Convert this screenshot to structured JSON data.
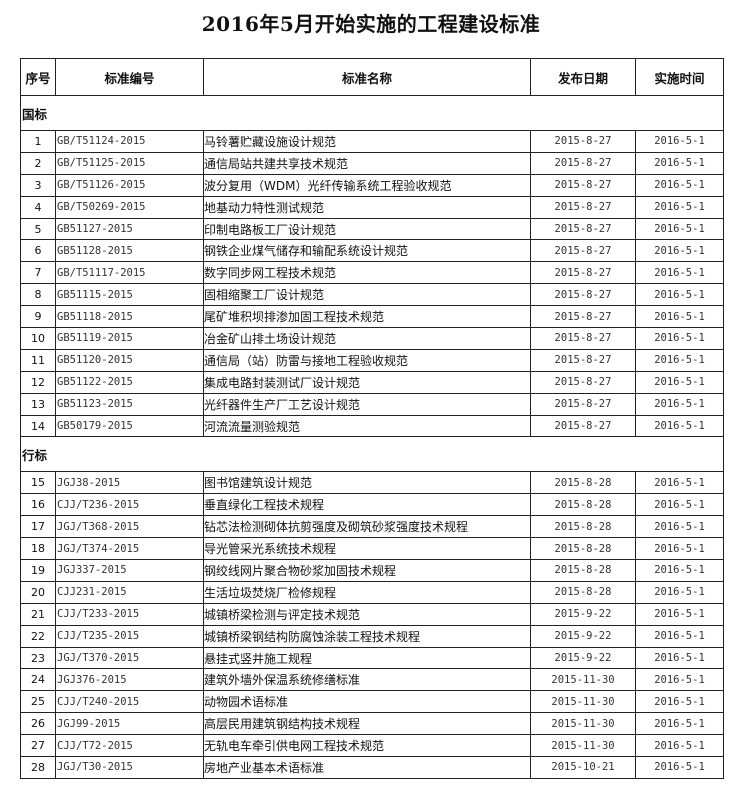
{
  "title": "2016年5月开始实施的工程建设标准",
  "headers": [
    "序号",
    "标准编号",
    "标准名称",
    "发布日期",
    "实施时间"
  ],
  "sections": [
    {
      "label": "国标",
      "rows": [
        [
          "1",
          "GB/T51124-2015",
          "马铃薯贮藏设施设计规范",
          "2015-8-27",
          "2016-5-1"
        ],
        [
          "2",
          "GB/T51125-2015",
          "通信局站共建共享技术规范",
          "2015-8-27",
          "2016-5-1"
        ],
        [
          "3",
          "GB/T51126-2015",
          "波分复用（WDM）光纤传输系统工程验收规范",
          "2015-8-27",
          "2016-5-1"
        ],
        [
          "4",
          "GB/T50269-2015",
          "地基动力特性测试规范",
          "2015-8-27",
          "2016-5-1"
        ],
        [
          "5",
          "GB51127-2015",
          "印制电路板工厂设计规范",
          "2015-8-27",
          "2016-5-1"
        ],
        [
          "6",
          "GB51128-2015",
          "钢铁企业煤气储存和输配系统设计规范",
          "2015-8-27",
          "2016-5-1"
        ],
        [
          "7",
          "GB/T51117-2015",
          "数字同步网工程技术规范",
          "2015-8-27",
          "2016-5-1"
        ],
        [
          "8",
          "GB51115-2015",
          "固相缩聚工厂设计规范",
          "2015-8-27",
          "2016-5-1"
        ],
        [
          "9",
          "GB51118-2015",
          "尾矿堆积坝排渗加固工程技术规范",
          "2015-8-27",
          "2016-5-1"
        ],
        [
          "10",
          "GB51119-2015",
          "冶金矿山排土场设计规范",
          "2015-8-27",
          "2016-5-1"
        ],
        [
          "11",
          "GB51120-2015",
          "通信局（站）防雷与接地工程验收规范",
          "2015-8-27",
          "2016-5-1"
        ],
        [
          "12",
          "GB51122-2015",
          "集成电路封装测试厂设计规范",
          "2015-8-27",
          "2016-5-1"
        ],
        [
          "13",
          "GB51123-2015",
          "光纤器件生产厂工艺设计规范",
          "2015-8-27",
          "2016-5-1"
        ],
        [
          "14",
          "GB50179-2015",
          "河流流量测验规范",
          "2015-8-27",
          "2016-5-1"
        ]
      ]
    },
    {
      "label": "行标",
      "rows": [
        [
          "15",
          "JGJ38-2015",
          "图书馆建筑设计规范",
          "2015-8-28",
          "2016-5-1"
        ],
        [
          "16",
          "CJJ/T236-2015",
          "垂直绿化工程技术规程",
          "2015-8-28",
          "2016-5-1"
        ],
        [
          "17",
          "JGJ/T368-2015",
          "钻芯法检测砌体抗剪强度及砌筑砂浆强度技术规程",
          "2015-8-28",
          "2016-5-1"
        ],
        [
          "18",
          "JGJ/T374-2015",
          "导光管采光系统技术规程",
          "2015-8-28",
          "2016-5-1"
        ],
        [
          "19",
          "JGJ337-2015",
          "钢绞线网片聚合物砂浆加固技术规程",
          "2015-8-28",
          "2016-5-1"
        ],
        [
          "20",
          "CJJ231-2015",
          "生活垃圾焚烧厂检修规程",
          "2015-8-28",
          "2016-5-1"
        ],
        [
          "21",
          "CJJ/T233-2015",
          "城镇桥梁检测与评定技术规范",
          "2015-9-22",
          "2016-5-1"
        ],
        [
          "22",
          "CJJ/T235-2015",
          "城镇桥梁钢结构防腐蚀涂装工程技术规程",
          "2015-9-22",
          "2016-5-1"
        ],
        [
          "23",
          "JGJ/T370-2015",
          "悬挂式竖井施工规程",
          "2015-9-22",
          "2016-5-1"
        ],
        [
          "24",
          "JGJ376-2015",
          "建筑外墙外保温系统修缮标准",
          "2015-11-30",
          "2016-5-1"
        ],
        [
          "25",
          "CJJ/T240-2015",
          "动物园术语标准",
          "2015-11-30",
          "2016-5-1"
        ],
        [
          "26",
          "JGJ99-2015",
          "高层民用建筑钢结构技术规程",
          "2015-11-30",
          "2016-5-1"
        ],
        [
          "27",
          "CJJ/T72-2015",
          "无轨电车牵引供电网工程技术规范",
          "2015-11-30",
          "2016-5-1"
        ],
        [
          "28",
          "JGJ/T30-2015",
          "房地产业基本术语标准",
          "2015-10-21",
          "2016-5-1"
        ]
      ]
    }
  ]
}
